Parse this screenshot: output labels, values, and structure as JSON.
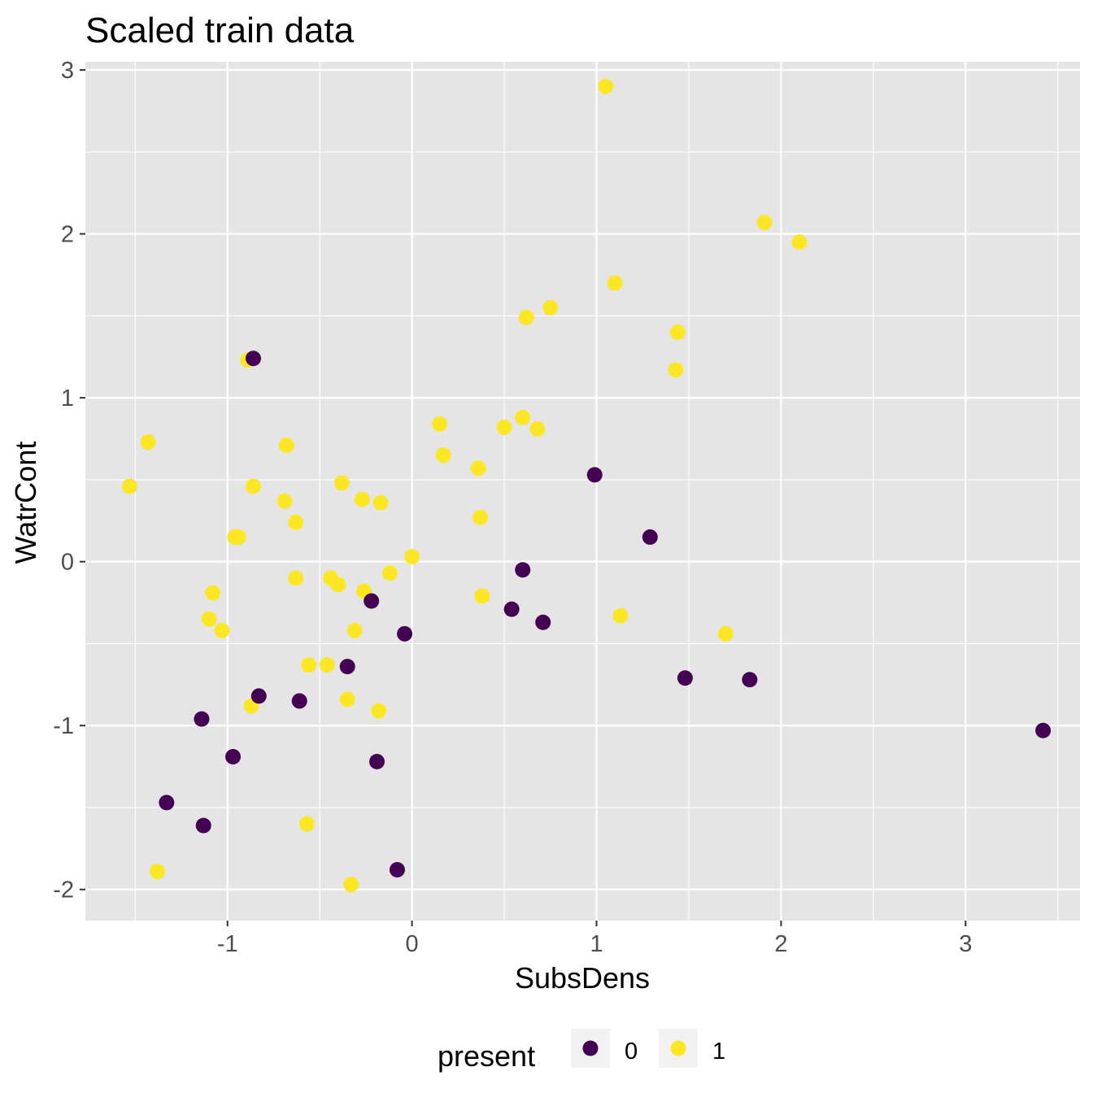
{
  "chart_data": {
    "type": "scatter",
    "title": "Scaled train data",
    "xlabel": "SubsDens",
    "ylabel": "WatrCont",
    "xlim": [
      -1.77,
      3.62
    ],
    "ylim": [
      -2.19,
      3.05
    ],
    "x_ticks": [
      -1,
      0,
      1,
      2,
      3
    ],
    "y_ticks": [
      -2,
      -1,
      0,
      1,
      2,
      3
    ],
    "x_tick_labels": [
      "-1",
      "0",
      "1",
      "2",
      "3"
    ],
    "y_tick_labels": [
      "-2",
      "-1",
      "0",
      "1",
      "2",
      "3"
    ],
    "grid": true,
    "legend": {
      "title": "present",
      "position": "bottom",
      "entries": [
        {
          "label": "0",
          "color": "#440154"
        },
        {
          "label": "1",
          "color": "#fde725"
        }
      ]
    },
    "colors": {
      "panel_background": "#e5e5e5",
      "grid_major": "#ffffff",
      "present_0": "#440154",
      "present_1": "#fde725"
    },
    "series": [
      {
        "name": "1",
        "color": "#fde725",
        "points": [
          [
            1.05,
            2.9
          ],
          [
            1.91,
            2.07
          ],
          [
            2.1,
            1.95
          ],
          [
            1.1,
            1.7
          ],
          [
            0.75,
            1.55
          ],
          [
            0.62,
            1.49
          ],
          [
            1.44,
            1.4
          ],
          [
            1.43,
            1.17
          ],
          [
            -0.89,
            1.23
          ],
          [
            -1.43,
            0.73
          ],
          [
            -1.53,
            0.46
          ],
          [
            -0.86,
            0.46
          ],
          [
            -0.68,
            0.71
          ],
          [
            -0.69,
            0.37
          ],
          [
            -0.63,
            0.24
          ],
          [
            -0.94,
            0.15
          ],
          [
            -0.96,
            0.15
          ],
          [
            -0.38,
            0.48
          ],
          [
            -0.27,
            0.38
          ],
          [
            -0.17,
            0.36
          ],
          [
            0.15,
            0.84
          ],
          [
            0.17,
            0.65
          ],
          [
            0.36,
            0.57
          ],
          [
            0.5,
            0.82
          ],
          [
            0.6,
            0.88
          ],
          [
            0.68,
            0.81
          ],
          [
            0.37,
            0.27
          ],
          [
            0.0,
            0.03
          ],
          [
            -0.12,
            -0.07
          ],
          [
            -0.63,
            -0.1
          ],
          [
            -0.44,
            -0.1
          ],
          [
            -0.4,
            -0.14
          ],
          [
            -0.26,
            -0.18
          ],
          [
            0.38,
            -0.21
          ],
          [
            -1.08,
            -0.19
          ],
          [
            -1.1,
            -0.35
          ],
          [
            -1.03,
            -0.42
          ],
          [
            -0.31,
            -0.42
          ],
          [
            1.13,
            -0.33
          ],
          [
            1.7,
            -0.44
          ],
          [
            -0.56,
            -0.63
          ],
          [
            -0.46,
            -0.63
          ],
          [
            -0.35,
            -0.84
          ],
          [
            -0.18,
            -0.91
          ],
          [
            -0.87,
            -0.88
          ],
          [
            -0.57,
            -1.6
          ],
          [
            -1.38,
            -1.89
          ],
          [
            -0.33,
            -1.97
          ]
        ]
      },
      {
        "name": "0",
        "color": "#440154",
        "points": [
          [
            -0.86,
            1.24
          ],
          [
            0.99,
            0.53
          ],
          [
            1.29,
            0.15
          ],
          [
            0.6,
            -0.05
          ],
          [
            0.54,
            -0.29
          ],
          [
            0.71,
            -0.37
          ],
          [
            -0.22,
            -0.24
          ],
          [
            -0.04,
            -0.44
          ],
          [
            -0.35,
            -0.64
          ],
          [
            1.48,
            -0.71
          ],
          [
            1.83,
            -0.72
          ],
          [
            3.42,
            -1.03
          ],
          [
            -0.83,
            -0.82
          ],
          [
            -0.61,
            -0.85
          ],
          [
            -1.14,
            -0.96
          ],
          [
            -0.97,
            -1.19
          ],
          [
            -0.19,
            -1.22
          ],
          [
            -1.33,
            -1.47
          ],
          [
            -1.13,
            -1.61
          ],
          [
            -0.08,
            -1.88
          ]
        ]
      }
    ]
  }
}
